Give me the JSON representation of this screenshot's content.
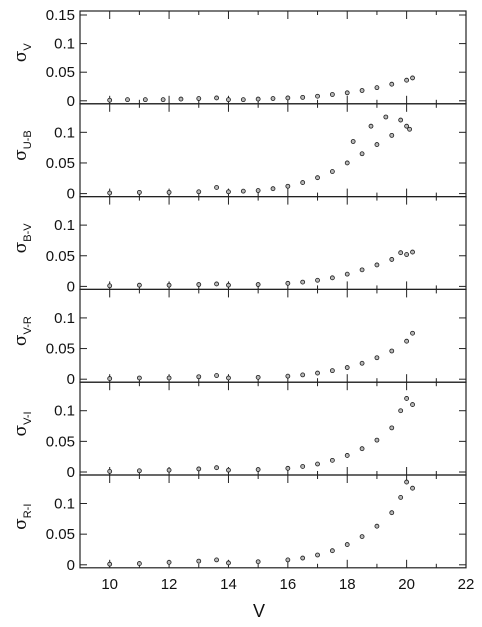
{
  "chart_data": {
    "type": "scatter",
    "x": {
      "label": "V",
      "range": [
        9,
        22
      ],
      "ticks": [
        10,
        12,
        14,
        16,
        18,
        20,
        22
      ]
    },
    "panels": [
      {
        "id": "V",
        "label_symbol": "σ",
        "label_subscript": "V",
        "ylim": [
          0,
          0.15
        ],
        "yticks": [
          0,
          0.05,
          0.1,
          0.15
        ],
        "ytick_labels": [
          "0",
          "0.05",
          "0.1",
          "0.15"
        ],
        "points": [
          [
            10.0,
            0.001
          ],
          [
            10.6,
            0.002
          ],
          [
            11.2,
            0.002
          ],
          [
            11.8,
            0.002
          ],
          [
            12.4,
            0.003
          ],
          [
            13.0,
            0.004
          ],
          [
            13.6,
            0.005
          ],
          [
            14.0,
            0.002
          ],
          [
            14.5,
            0.002
          ],
          [
            15.0,
            0.003
          ],
          [
            15.5,
            0.004
          ],
          [
            16.0,
            0.005
          ],
          [
            16.5,
            0.006
          ],
          [
            17.0,
            0.008
          ],
          [
            17.5,
            0.011
          ],
          [
            18.0,
            0.014
          ],
          [
            18.5,
            0.018
          ],
          [
            19.0,
            0.023
          ],
          [
            19.5,
            0.029
          ],
          [
            20.0,
            0.036
          ],
          [
            20.2,
            0.04
          ]
        ]
      },
      {
        "id": "U-B",
        "label_symbol": "σ",
        "label_subscript": "U-B",
        "ylim": [
          0,
          0.14
        ],
        "yticks": [
          0,
          0.05,
          0.1
        ],
        "ytick_labels": [
          "0",
          "0.05",
          "0.1"
        ],
        "points": [
          [
            10.0,
            0.001
          ],
          [
            11.0,
            0.002
          ],
          [
            12.0,
            0.002
          ],
          [
            13.0,
            0.003
          ],
          [
            13.6,
            0.01
          ],
          [
            14.0,
            0.003
          ],
          [
            14.5,
            0.004
          ],
          [
            15.0,
            0.005
          ],
          [
            15.5,
            0.008
          ],
          [
            16.0,
            0.012
          ],
          [
            16.5,
            0.018
          ],
          [
            17.0,
            0.026
          ],
          [
            17.5,
            0.036
          ],
          [
            18.0,
            0.05
          ],
          [
            18.2,
            0.085
          ],
          [
            18.5,
            0.065
          ],
          [
            18.8,
            0.11
          ],
          [
            19.0,
            0.08
          ],
          [
            19.3,
            0.125
          ],
          [
            19.5,
            0.095
          ],
          [
            19.8,
            0.12
          ],
          [
            20.0,
            0.11
          ],
          [
            20.1,
            0.105
          ]
        ]
      },
      {
        "id": "B-V",
        "label_symbol": "σ",
        "label_subscript": "B-V",
        "ylim": [
          0,
          0.14
        ],
        "yticks": [
          0,
          0.05,
          0.1
        ],
        "ytick_labels": [
          "0",
          "0.05",
          "0.1"
        ],
        "points": [
          [
            10.0,
            0.001
          ],
          [
            11.0,
            0.002
          ],
          [
            12.0,
            0.002
          ],
          [
            13.0,
            0.003
          ],
          [
            13.6,
            0.004
          ],
          [
            14.0,
            0.002
          ],
          [
            15.0,
            0.003
          ],
          [
            16.0,
            0.005
          ],
          [
            16.5,
            0.007
          ],
          [
            17.0,
            0.01
          ],
          [
            17.5,
            0.014
          ],
          [
            18.0,
            0.02
          ],
          [
            18.5,
            0.027
          ],
          [
            19.0,
            0.035
          ],
          [
            19.5,
            0.044
          ],
          [
            19.8,
            0.055
          ],
          [
            20.0,
            0.052
          ],
          [
            20.2,
            0.056
          ]
        ]
      },
      {
        "id": "V-R",
        "label_symbol": "σ",
        "label_subscript": "V-R",
        "ylim": [
          0,
          0.14
        ],
        "yticks": [
          0,
          0.05,
          0.1
        ],
        "ytick_labels": [
          "0",
          "0.05",
          "0.1"
        ],
        "points": [
          [
            10.0,
            0.001
          ],
          [
            11.0,
            0.002
          ],
          [
            12.0,
            0.002
          ],
          [
            13.0,
            0.004
          ],
          [
            13.6,
            0.006
          ],
          [
            14.0,
            0.002
          ],
          [
            15.0,
            0.003
          ],
          [
            16.0,
            0.005
          ],
          [
            16.5,
            0.007
          ],
          [
            17.0,
            0.01
          ],
          [
            17.5,
            0.014
          ],
          [
            18.0,
            0.019
          ],
          [
            18.5,
            0.026
          ],
          [
            19.0,
            0.035
          ],
          [
            19.5,
            0.046
          ],
          [
            20.0,
            0.062
          ],
          [
            20.2,
            0.075
          ]
        ]
      },
      {
        "id": "V-I",
        "label_symbol": "σ",
        "label_subscript": "V-I",
        "ylim": [
          0,
          0.14
        ],
        "yticks": [
          0,
          0.05,
          0.1
        ],
        "ytick_labels": [
          "0",
          "0.05",
          "0.1"
        ],
        "points": [
          [
            10.0,
            0.001
          ],
          [
            11.0,
            0.002
          ],
          [
            12.0,
            0.003
          ],
          [
            13.0,
            0.005
          ],
          [
            13.6,
            0.007
          ],
          [
            14.0,
            0.003
          ],
          [
            15.0,
            0.004
          ],
          [
            16.0,
            0.006
          ],
          [
            16.5,
            0.009
          ],
          [
            17.0,
            0.013
          ],
          [
            17.5,
            0.019
          ],
          [
            18.0,
            0.027
          ],
          [
            18.5,
            0.038
          ],
          [
            19.0,
            0.052
          ],
          [
            19.5,
            0.072
          ],
          [
            19.8,
            0.1
          ],
          [
            20.0,
            0.12
          ],
          [
            20.2,
            0.11
          ]
        ]
      },
      {
        "id": "R-I",
        "label_symbol": "σ",
        "label_subscript": "R-I",
        "ylim": [
          0,
          0.14
        ],
        "yticks": [
          0,
          0.05,
          0.1
        ],
        "ytick_labels": [
          "0",
          "0.05",
          "0.1"
        ],
        "points": [
          [
            10.0,
            0.001
          ],
          [
            11.0,
            0.002
          ],
          [
            12.0,
            0.004
          ],
          [
            13.0,
            0.006
          ],
          [
            13.6,
            0.008
          ],
          [
            14.0,
            0.003
          ],
          [
            15.0,
            0.005
          ],
          [
            16.0,
            0.008
          ],
          [
            16.5,
            0.011
          ],
          [
            17.0,
            0.016
          ],
          [
            17.5,
            0.023
          ],
          [
            18.0,
            0.033
          ],
          [
            18.5,
            0.046
          ],
          [
            19.0,
            0.063
          ],
          [
            19.5,
            0.085
          ],
          [
            19.8,
            0.11
          ],
          [
            20.0,
            0.135
          ],
          [
            20.2,
            0.125
          ]
        ]
      }
    ],
    "marker": {
      "fill": "#b8b8b8",
      "stroke": "#1a1a1a"
    },
    "grid": false
  }
}
